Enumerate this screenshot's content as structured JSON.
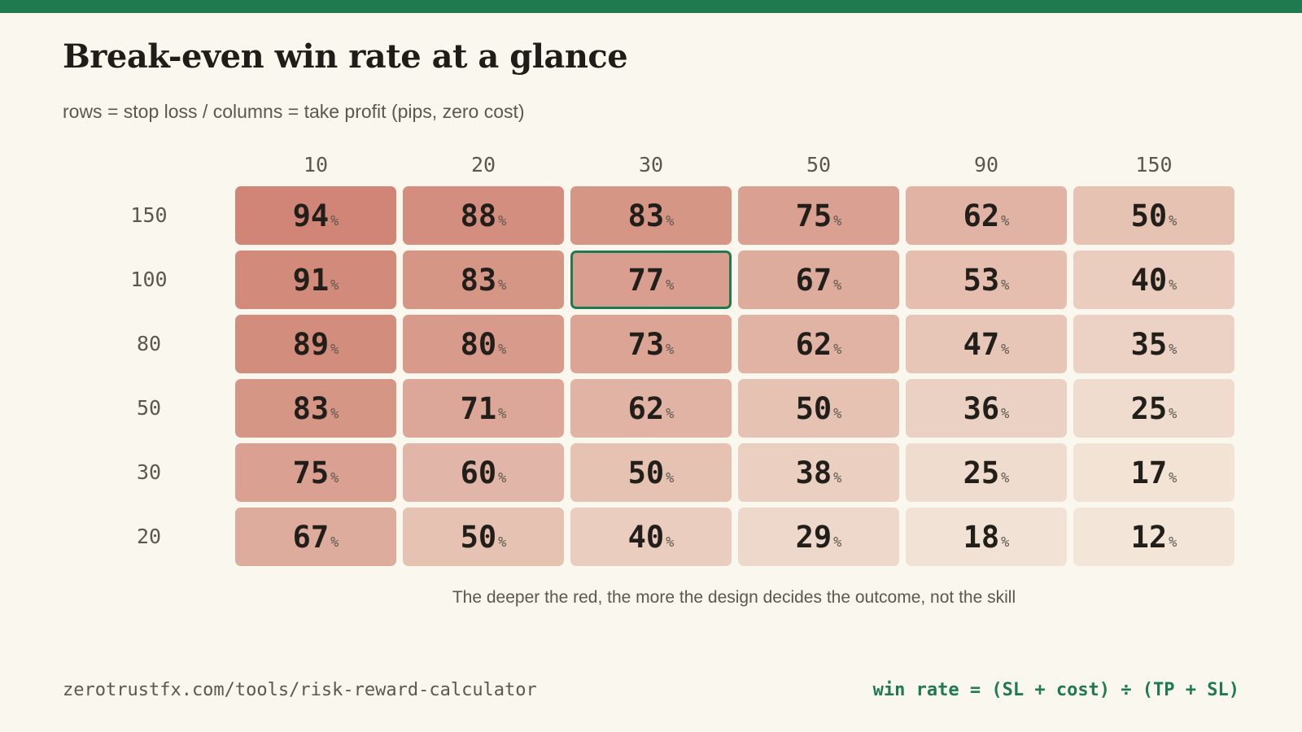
{
  "header": {
    "title": "Break-even win rate at a glance",
    "subtitle": "rows = stop loss / columns = take profit (pips, zero cost)"
  },
  "caption": "The deeper the red, the more the design decides the outcome, not the skill",
  "footer": {
    "url": "zerotrustfx.com/tools/risk-reward-calculator",
    "formula": "win rate = (SL + cost) ÷ (TP + SL)"
  },
  "colors": {
    "accent": "#1f7a4f",
    "background": "#faf7ef",
    "heat_low": "#f5ecdf",
    "heat_high": "#cd7c6c"
  },
  "chart_data": {
    "type": "heatmap",
    "title": "Break-even win rate at a glance",
    "subtitle": "rows = stop loss / columns = take profit (pips, zero cost)",
    "columns": [
      "10",
      "20",
      "30",
      "50",
      "90",
      "150"
    ],
    "rows": [
      "150",
      "100",
      "80",
      "50",
      "30",
      "20"
    ],
    "values": [
      [
        94,
        88,
        83,
        75,
        62,
        50
      ],
      [
        91,
        83,
        77,
        67,
        53,
        40
      ],
      [
        89,
        80,
        73,
        62,
        47,
        35
      ],
      [
        83,
        71,
        62,
        50,
        36,
        25
      ],
      [
        75,
        60,
        50,
        38,
        25,
        17
      ],
      [
        67,
        50,
        40,
        29,
        18,
        12
      ]
    ],
    "unit": "%",
    "highlight": {
      "row": "100",
      "column": "30"
    },
    "value_range": [
      0,
      100
    ]
  }
}
